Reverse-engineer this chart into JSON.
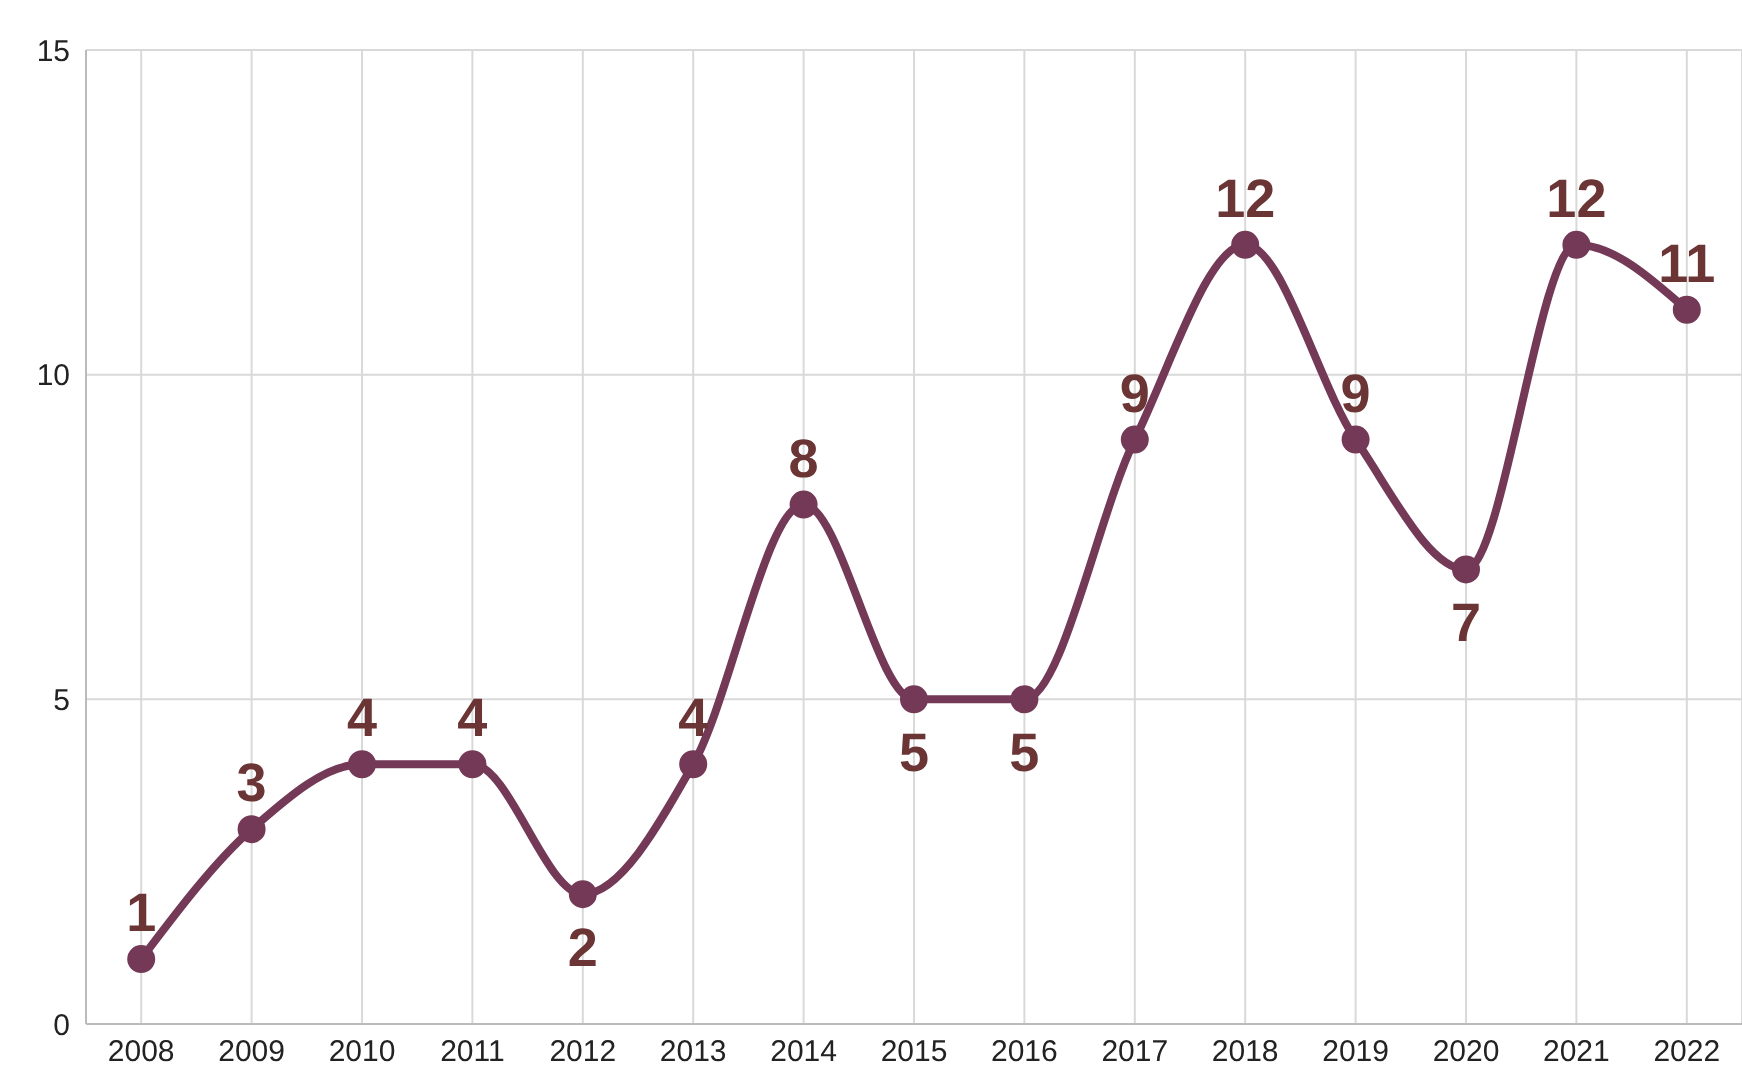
{
  "chart_data": {
    "type": "line",
    "categories": [
      "2008",
      "2009",
      "2010",
      "2011",
      "2012",
      "2013",
      "2014",
      "2015",
      "2016",
      "2017",
      "2018",
      "2019",
      "2020",
      "2021",
      "2022"
    ],
    "series": [
      {
        "color": "#733956",
        "values": [
          1,
          3,
          4,
          4,
          2,
          4,
          8,
          5,
          5,
          9,
          12,
          9,
          7,
          12,
          11
        ]
      }
    ],
    "ylim": [
      0,
      15
    ],
    "yticks": [
      0,
      5,
      10,
      15
    ],
    "grid": true,
    "data_labels": true,
    "marker": "circle",
    "line_style": "solid"
  }
}
